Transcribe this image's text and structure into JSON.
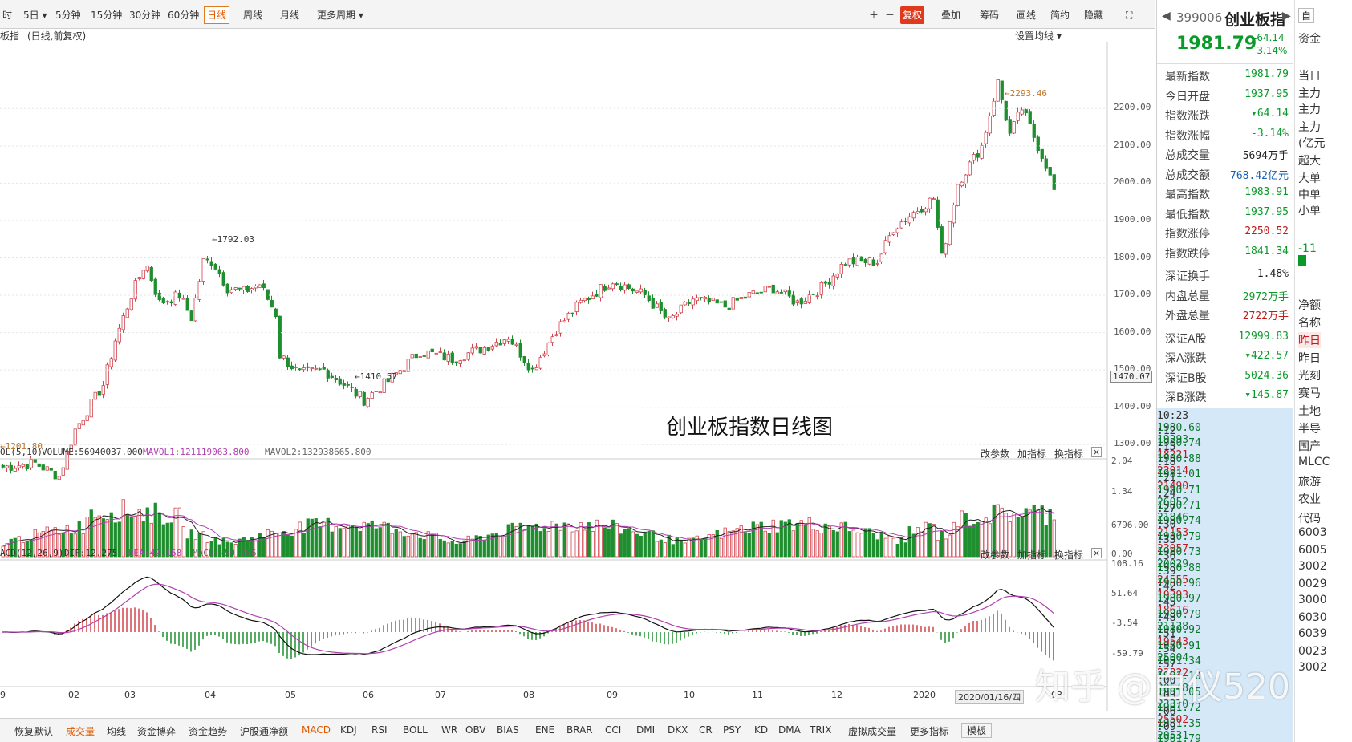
{
  "toolbar": {
    "items": [
      "时",
      "5日",
      "5分钟",
      "15分钟",
      "30分钟",
      "60分钟",
      "日线",
      "周线",
      "月线",
      "更多周期"
    ],
    "selected": "日线",
    "right_items": [
      "复权",
      "叠加",
      "筹码",
      "画线",
      "简约",
      "隐藏"
    ]
  },
  "chart": {
    "title": "板指",
    "subtitle": "(日线,前复权)",
    "setting": "设置均线",
    "annotation": "创业板指数日线图",
    "price_ticks": [
      "2200.00",
      "2100.00",
      "2000.00",
      "1900.00",
      "1800.00",
      "1700.00",
      "1600.00",
      "1500.00",
      "1400.00",
      "1300.00"
    ],
    "current_price_label": "1470.07",
    "labels": {
      "high": "2293.46",
      "peak1": "1792.03",
      "low1": "1410.57",
      "low0": "1201.80"
    },
    "vol_legend": {
      "name": "OL(5,10)",
      "volume": "VOLUME:56940037.000",
      "mavol1": "MAVOL1:121119063.800",
      "mavol2": "MAVOL2:132938665.800"
    },
    "vol_ticks": [
      "2.04",
      "1.34",
      "6796.00",
      "0.00"
    ],
    "macd_legend": {
      "name": "ACD(12,26,9)",
      "dif": "DIF:12.275",
      "dea": "DEA:42.168",
      "macd": "MACD:-59.786"
    },
    "macd_ticks": [
      "108.16",
      "51.64",
      "-3.54",
      "-59.79"
    ],
    "panel_buttons": [
      "改参数",
      "加指标",
      "换指标"
    ],
    "x_labels": [
      "9",
      "02",
      "03",
      "04",
      "05",
      "06",
      "07",
      "08",
      "09",
      "10",
      "11",
      "12",
      "2020",
      "2020/01/16/四",
      "03"
    ]
  },
  "bottombar": {
    "items": [
      "恢复默认",
      "成交量",
      "均线",
      "资金博弈",
      "资金趋势",
      "沪股通净额",
      "MACD",
      "KDJ",
      "RSI",
      "BOLL",
      "WR",
      "OBV",
      "BIAS",
      "ENE",
      "BRAR",
      "CCI",
      "DMI",
      "DKX",
      "CR",
      "PSY",
      "KD",
      "DMA",
      "TRIX",
      "虚拟成交量",
      "更多指标",
      "模板"
    ],
    "active": [
      "成交量",
      "MACD"
    ]
  },
  "quote": {
    "code": "399006",
    "name": "创业板指",
    "price": "1981.79",
    "change": "-64.14",
    "pct": "-3.14%",
    "rows": [
      [
        "最新指数",
        "1981.79",
        "g"
      ],
      [
        "今日开盘",
        "1937.95",
        "g"
      ],
      [
        "指数涨跌",
        "▾64.14",
        "g"
      ],
      [
        "指数涨幅",
        "-3.14%",
        "g"
      ],
      [
        "总成交量",
        "5694万手",
        "k"
      ],
      [
        "总成交额",
        "768.42亿元",
        "b"
      ],
      [
        "最高指数",
        "1983.91",
        "g"
      ],
      [
        "最低指数",
        "1937.95",
        "g"
      ],
      [
        "指数涨停",
        "2250.52",
        "r"
      ],
      [
        "指数跌停",
        "1841.34",
        "g"
      ],
      [
        "深证换手",
        "1.48%",
        "k"
      ],
      [
        "内盘总量",
        "2972万手",
        "g"
      ],
      [
        "外盘总量",
        "2722万手",
        "r"
      ],
      [
        "深证A股",
        "12999.83",
        "g"
      ],
      [
        "深A涨跌",
        "▾422.57",
        "g"
      ],
      [
        "深证B股",
        "5024.36",
        "g"
      ],
      [
        "深B涨跌",
        "▾145.87",
        "g"
      ]
    ],
    "ticks": [
      [
        "10:23",
        "1980.60",
        "19293",
        "g"
      ],
      [
        ":12",
        "1980.74",
        "18221",
        "r"
      ],
      [
        ":15",
        "1980.88",
        "22914",
        "r"
      ],
      [
        ":18",
        "1981.01",
        "21490",
        "r"
      ],
      [
        ":21",
        "1980.71",
        "26052",
        "g"
      ],
      [
        ":24",
        "1980.71",
        "21846",
        "g"
      ],
      [
        ":27",
        "1980.74",
        "21153",
        "r"
      ],
      [
        ":30",
        "1980.79",
        "23057",
        "r"
      ],
      [
        ":33",
        "1980.73",
        "20029",
        "g"
      ],
      [
        ":36",
        "1980.88",
        "24555",
        "r"
      ],
      [
        ":39",
        "1980.96",
        "19393",
        "r"
      ],
      [
        ":42",
        "1980.97",
        "18616",
        "r"
      ],
      [
        ":45",
        "1980.79",
        "21128",
        "g"
      ],
      [
        ":48",
        "1980.92",
        "19543",
        "r"
      ],
      [
        ":51",
        "1980.91",
        "25004",
        "g"
      ],
      [
        ":54",
        "1981.34",
        "23822",
        "r"
      ],
      [
        ":57",
        "1981.10",
        "20548",
        "g"
      ],
      [
        ":00",
        "1981.05",
        "23370",
        "g"
      ],
      [
        ":03",
        "1981.72",
        "25502",
        "r"
      ],
      [
        ":06",
        "1981.35",
        "20531",
        "g"
      ],
      [
        ":09",
        "1981.79",
        "18185",
        "r"
      ]
    ]
  },
  "far": {
    "items": [
      "资金",
      "当日",
      "主力",
      "主力",
      "主力",
      "(亿元",
      "超大",
      "大单",
      "中单",
      "小单",
      "-11",
      "净额",
      "名称",
      "昨日",
      "昨日",
      "光刻",
      "赛马",
      "土地",
      "半导",
      "国产",
      "MLCC",
      "旅游",
      "农业",
      "代码",
      "6003",
      "6005",
      "3002",
      "0029",
      "3000",
      "6030",
      "6039",
      "0023",
      "3002"
    ]
  },
  "watermark": "知乎 @白仪520"
}
